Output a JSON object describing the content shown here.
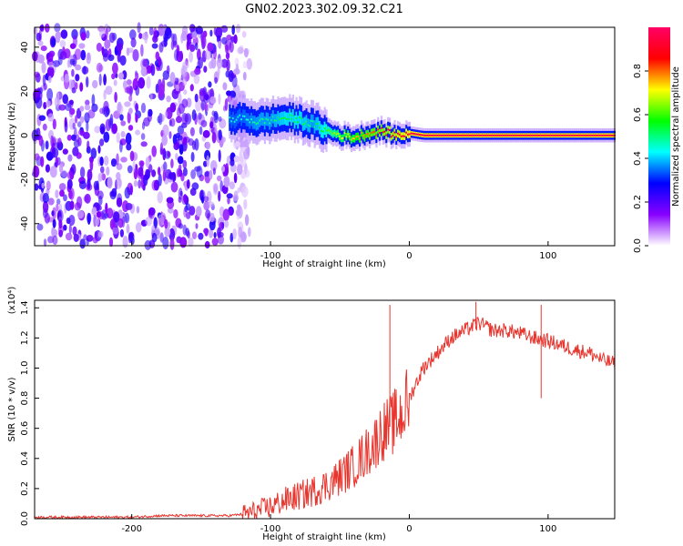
{
  "title": "GN02.2023.302.09.32.C21",
  "chart_data": [
    {
      "type": "heatmap",
      "xlabel": "Height of straight line (km)",
      "ylabel": "Frequency (Hz)",
      "xlim": [
        -270,
        148
      ],
      "ylim": [
        -50,
        49
      ],
      "xticks": [
        -200,
        -100,
        0,
        100
      ],
      "yticks": [
        -40,
        -20,
        0,
        20,
        40
      ],
      "colorbar": {
        "label": "Normalized spectral amplitude",
        "range": [
          0,
          1
        ],
        "ticks": [
          "0.0",
          "0.2",
          "0.4",
          "0.6",
          "0.8"
        ],
        "colors": [
          "#ffffff",
          "#8800ff",
          "#0000ff",
          "#00ffff",
          "#00ff00",
          "#ffff00",
          "#ff0000",
          "#ff0066"
        ]
      },
      "ridge": {
        "x": [
          -130,
          -120,
          -110,
          -100,
          -90,
          -80,
          -70,
          -60,
          -50,
          -40,
          -30,
          -20,
          -10,
          0,
          10,
          30,
          60,
          100,
          148
        ],
        "freq": [
          7,
          8,
          6,
          7,
          8,
          7,
          5,
          2,
          0,
          -1,
          1,
          2,
          0,
          1,
          0,
          0,
          0,
          0,
          0
        ],
        "amplitude": [
          0.45,
          0.45,
          0.5,
          0.5,
          0.55,
          0.55,
          0.5,
          0.6,
          0.7,
          0.75,
          0.8,
          0.85,
          0.9,
          0.95,
          0.95,
          0.95,
          0.95,
          0.95,
          0.95
        ]
      },
      "noise_region_xmax": -125
    },
    {
      "type": "line",
      "xlabel": "Height of straight line (km)",
      "ylabel": "SNR (10 * v/v)",
      "yscale_label": "(x10⁴)",
      "xlim": [
        -270,
        148
      ],
      "ylim": [
        0,
        1.45
      ],
      "xticks": [
        -200,
        -100,
        0,
        100
      ],
      "yticks": [
        "0.0",
        "0.2",
        "0.4",
        "0.6",
        "0.8",
        "1.0",
        "1.2",
        "1.4"
      ],
      "color": "#e8352e",
      "series": [
        {
          "x": [
            -270,
            -250,
            -230,
            -200,
            -180,
            -150,
            -130,
            -120,
            -110,
            -100,
            -90,
            -80,
            -70,
            -60,
            -50,
            -40,
            -30,
            -25,
            -20,
            -15,
            -10,
            -5,
            0,
            5,
            10,
            20,
            30,
            40,
            50,
            60,
            70,
            80,
            90,
            100,
            110,
            120,
            130,
            140,
            148
          ],
          "y": [
            0.01,
            0.01,
            0.01,
            0.01,
            0.02,
            0.02,
            0.02,
            0.03,
            0.05,
            0.08,
            0.12,
            0.15,
            0.18,
            0.22,
            0.28,
            0.35,
            0.45,
            0.5,
            0.58,
            0.6,
            0.65,
            0.7,
            0.8,
            0.9,
            1.0,
            1.1,
            1.2,
            1.25,
            1.3,
            1.25,
            1.25,
            1.23,
            1.2,
            1.18,
            1.15,
            1.12,
            1.1,
            1.05,
            1.03
          ]
        }
      ],
      "spikes": [
        {
          "x": -14,
          "y": 1.42
        },
        {
          "x": 48,
          "y": 1.44
        },
        {
          "x": 95,
          "y": 1.42
        },
        {
          "x": 95,
          "y": 0.8
        }
      ]
    }
  ]
}
